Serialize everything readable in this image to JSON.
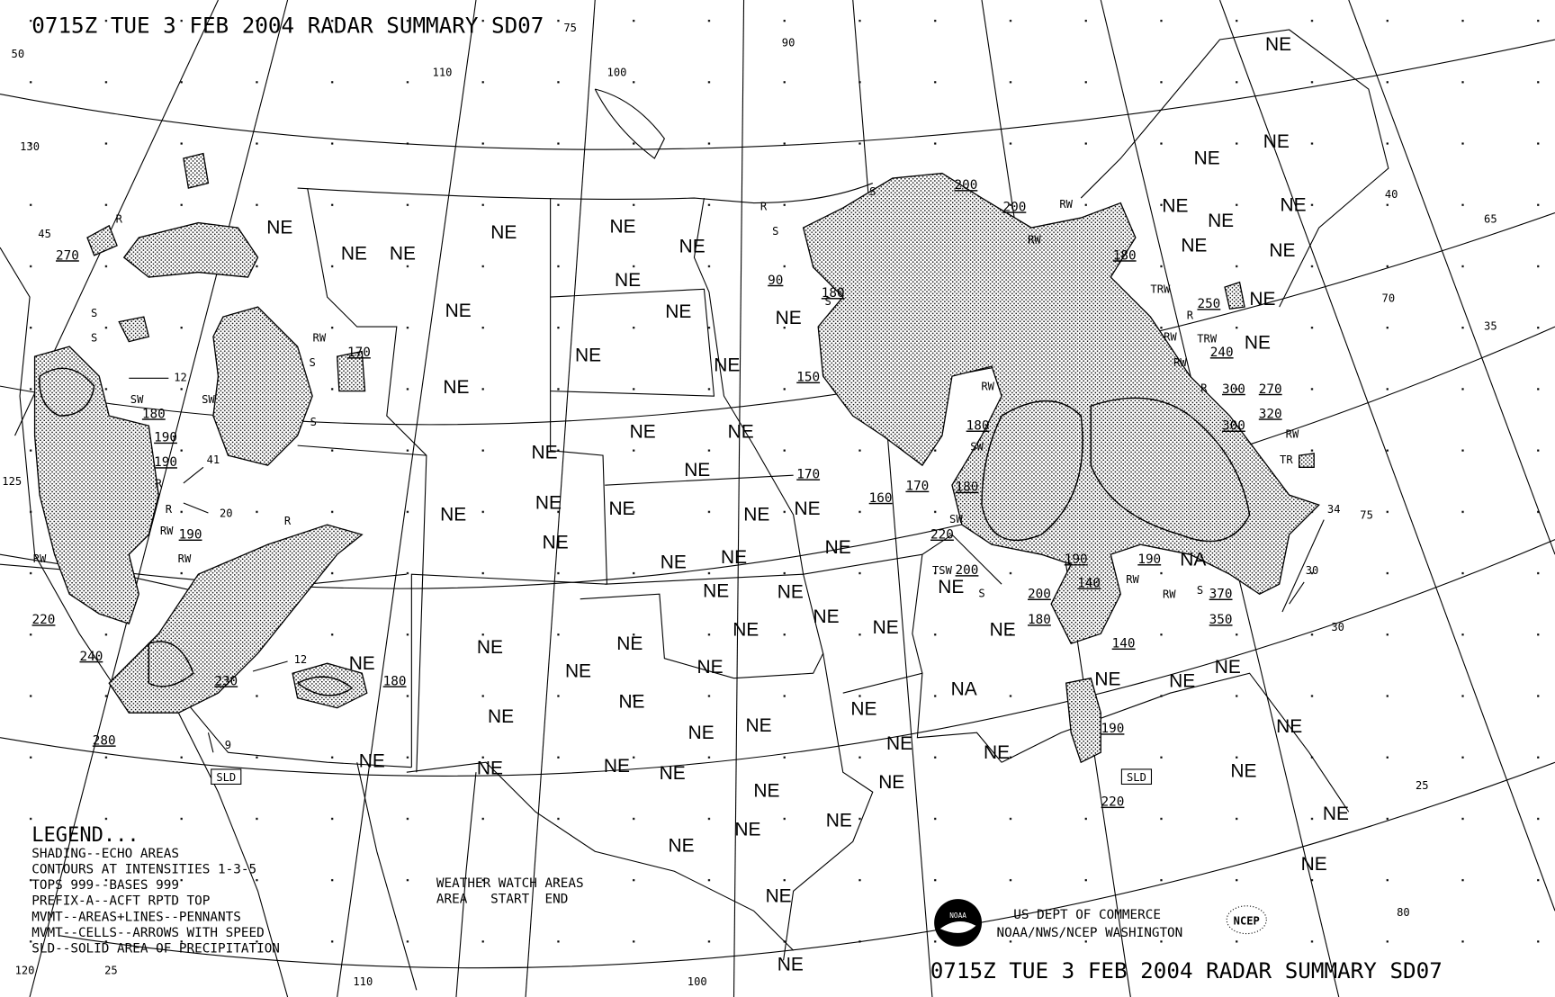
{
  "title_top": "0715Z TUE  3 FEB 2004 RADAR SUMMARY SD07",
  "title_bottom": "0715Z TUE  3 FEB 2004 RADAR SUMMARY SD07",
  "legend": {
    "heading": "LEGEND...",
    "lines": [
      "SHADING--ECHO AREAS",
      "CONTOURS AT INTENSITIES 1-3-5",
      "TOPS 999--BASES 999",
      "PREFIX-A--ACFT RPTD TOP",
      "MVMT--AREAS+LINES--PENNANTS",
      "MVMT--CELLS--ARROWS WITH SPEED",
      "SLD--SOLID AREA OF PRECIPITATION"
    ]
  },
  "watch": {
    "heading": "WEATHER WATCH AREAS",
    "columns": "AREA   START  END"
  },
  "credits": {
    "line1": "US DEPT OF COMMERCE",
    "line2": "NOAA/NWS/NCEP WASHINGTON",
    "noaa_logo": "NOAA",
    "ncep_logo": "NCEP"
  },
  "area_labels": [
    "NE",
    "NE",
    "NE",
    "NE",
    "NE",
    "NE",
    "NE",
    "NE",
    "NE",
    "NE",
    "NE",
    "NE",
    "NE",
    "NE",
    "NE",
    "NE",
    "NE",
    "NE",
    "NE",
    "NE",
    "NE",
    "NE",
    "NE",
    "NE",
    "NE",
    "NE",
    "NE",
    "NE",
    "NE",
    "NE",
    "NE",
    "NE",
    "NE",
    "NE",
    "NE",
    "NE",
    "NE",
    "NE",
    "NE",
    "NE",
    "NE",
    "NE",
    "NE",
    "NE",
    "NE",
    "NE",
    "NE",
    "NE",
    "NE",
    "NE",
    "NE",
    "NE",
    "NE",
    "NE",
    "NE",
    "NE",
    "NE",
    "NE",
    "NE",
    "NE",
    "NE",
    "NE",
    "NE",
    "NE",
    "NE",
    "NE",
    "NE",
    "NE",
    "NE",
    "NE",
    "NE",
    "NE",
    "NE",
    "NA",
    "NA",
    "NA"
  ],
  "echo_tops": [
    "270",
    "180",
    "190",
    "190",
    "190",
    "220",
    "240",
    "280",
    "230",
    "180",
    "170",
    "90",
    "180",
    "150",
    "170",
    "160",
    "170",
    "180",
    "180",
    "220",
    "200",
    "200",
    "200",
    "180",
    "250",
    "240",
    "300",
    "270",
    "320",
    "300",
    "190",
    "190",
    "140",
    "200",
    "180",
    "140",
    "370",
    "350",
    "190",
    "220"
  ],
  "precip_types": [
    "R",
    "S",
    "S",
    "RW",
    "S",
    "SW",
    "SW",
    "R",
    "R",
    "RW",
    "RW",
    "RW",
    "R",
    "S",
    "R",
    "S",
    "S",
    "S",
    "RW",
    "SW",
    "RW",
    "RW",
    "TRW",
    "TRW",
    "RW",
    "RW",
    "R",
    "TR",
    "RW",
    "R",
    "RW",
    "S",
    "RW",
    "SW",
    "S",
    "TSW"
  ],
  "cell_speeds": [
    "12",
    "20",
    "41",
    "12",
    "9",
    "34",
    "30"
  ],
  "sld_labels": [
    "SLD",
    "SLD"
  ],
  "grid_labels": [
    "50",
    "45",
    "130",
    "125",
    "110",
    "100",
    "90",
    "75",
    "40",
    "65",
    "70",
    "35",
    "30",
    "25",
    "120",
    "25",
    "110",
    "100",
    "80",
    "75"
  ]
}
